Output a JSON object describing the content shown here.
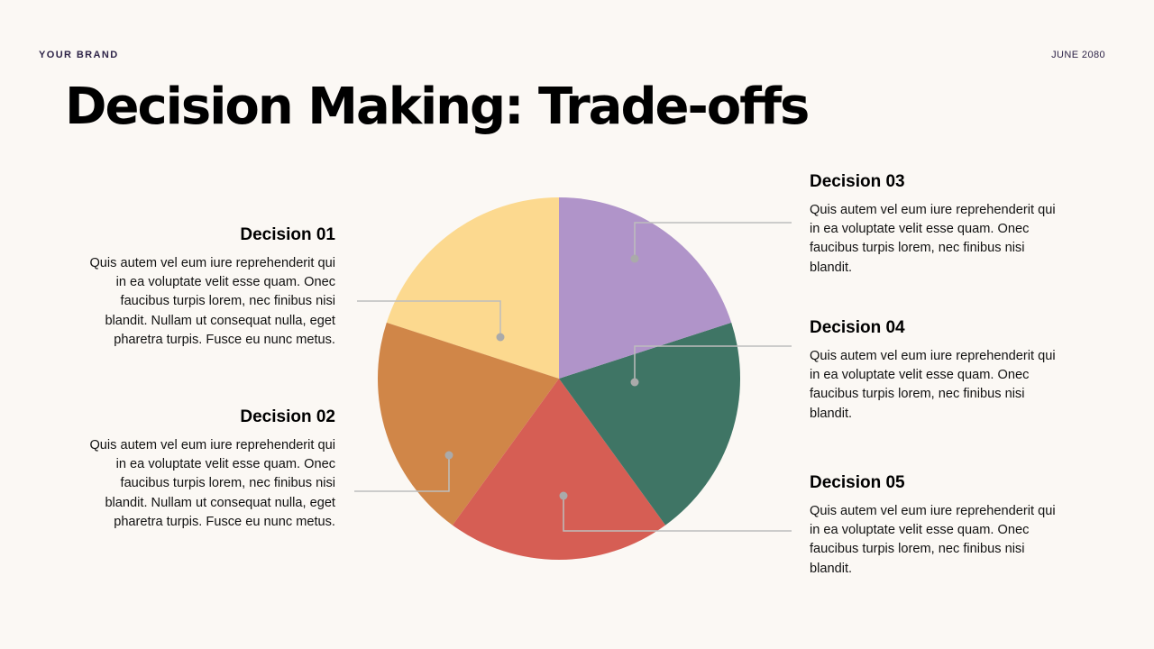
{
  "header": {
    "brand": "YOUR BRAND",
    "date": "JUNE 2080",
    "title": "Decision Making: Trade-offs"
  },
  "decisions": [
    {
      "heading": "Decision 01",
      "body": "Quis autem vel eum iure reprehenderit qui in ea voluptate velit esse quam. Onec faucibus turpis lorem, nec finibus nisi blandit. Nullam ut consequat nulla, eget pharetra turpis. Fusce eu nunc metus.",
      "color": "#fcd98f"
    },
    {
      "heading": "Decision 02",
      "body": "Quis autem vel eum iure reprehenderit qui in ea voluptate velit esse quam. Onec faucibus turpis lorem, nec finibus nisi blandit. Nullam ut consequat nulla, eget pharetra turpis. Fusce eu nunc metus.",
      "color": "#d08648"
    },
    {
      "heading": "Decision 03",
      "body": "Quis autem vel eum iure reprehenderit qui in ea voluptate velit esse quam. Onec faucibus turpis lorem, nec finibus nisi blandit.",
      "color": "#b094c9"
    },
    {
      "heading": "Decision 04",
      "body": "Quis autem vel eum iure reprehenderit qui in ea voluptate velit esse quam. Onec faucibus turpis lorem, nec finibus nisi blandit.",
      "color": "#3f7565"
    },
    {
      "heading": "Decision 05",
      "body": "Quis autem vel eum iure reprehenderit qui in ea voluptate velit esse quam. Onec faucibus turpis lorem, nec finibus nisi blandit.",
      "color": "#d65e54"
    }
  ],
  "connector_color": "#bdbdbd",
  "marker_color": "#aaaaaa"
}
